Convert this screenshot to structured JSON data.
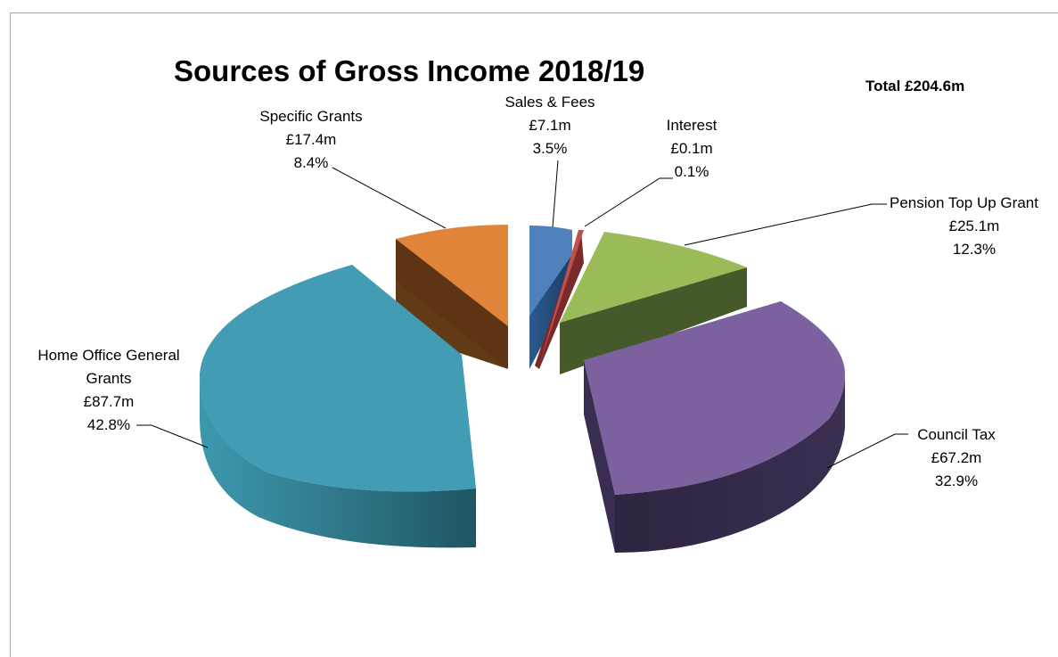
{
  "chart_data": {
    "type": "pie",
    "title": "Sources of Gross Income 2018/19",
    "total_label": "Total £204.6m",
    "style": "3d-exploded",
    "slices": [
      {
        "name": "Sales & Fees",
        "value_label": "£7.1m",
        "percent_label": "3.5%",
        "value": 7.1,
        "percent": 3.5,
        "color": "#4f81bd"
      },
      {
        "name": "Interest",
        "value_label": "£0.1m",
        "percent_label": "0.1%",
        "value": 0.1,
        "percent": 0.1,
        "color": "#c0504d"
      },
      {
        "name": "Pension Top Up Grant",
        "value_label": "£25.1m",
        "percent_label": "12.3%",
        "value": 25.1,
        "percent": 12.3,
        "color": "#9bbb59"
      },
      {
        "name": "Council Tax",
        "value_label": "£67.2m",
        "percent_label": "32.9%",
        "value": 67.2,
        "percent": 32.9,
        "color": "#8064a2"
      },
      {
        "name_lines": [
          "Home Office General",
          "Grants"
        ],
        "name": "Home Office General Grants",
        "value_label": "£87.7m",
        "percent_label": "42.8%",
        "value": 87.7,
        "percent": 42.8,
        "color": "#4bacc6"
      },
      {
        "name": "Specific Grants",
        "value_label": "£17.4m",
        "percent_label": "8.4%",
        "value": 17.4,
        "percent": 8.4,
        "color": "#f79646"
      }
    ]
  }
}
